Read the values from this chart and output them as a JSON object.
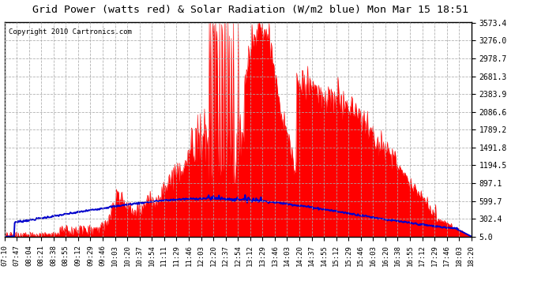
{
  "title": "Grid Power (watts red) & Solar Radiation (W/m2 blue) Mon Mar 15 18:51",
  "copyright": "Copyright 2010 Cartronics.com",
  "yticks": [
    5.0,
    302.4,
    599.7,
    897.1,
    1194.5,
    1491.8,
    1789.2,
    2086.6,
    2383.9,
    2681.3,
    2978.7,
    3276.0,
    3573.4
  ],
  "ymin": 5.0,
  "ymax": 3573.4,
  "bg_color": "#ffffff",
  "plot_bg_color": "#ffffff",
  "grid_color": "#aaaaaa",
  "red_color": "#ff0000",
  "blue_color": "#0000cc",
  "x_labels": [
    "07:10",
    "07:47",
    "08:04",
    "08:21",
    "08:38",
    "08:55",
    "09:12",
    "09:29",
    "09:46",
    "10:03",
    "10:20",
    "10:37",
    "10:54",
    "11:11",
    "11:29",
    "11:46",
    "12:03",
    "12:20",
    "12:37",
    "12:54",
    "13:12",
    "13:29",
    "13:46",
    "14:03",
    "14:20",
    "14:37",
    "14:55",
    "15:12",
    "15:29",
    "15:46",
    "16:03",
    "16:20",
    "16:38",
    "16:55",
    "17:12",
    "17:29",
    "17:46",
    "18:03",
    "18:20"
  ]
}
